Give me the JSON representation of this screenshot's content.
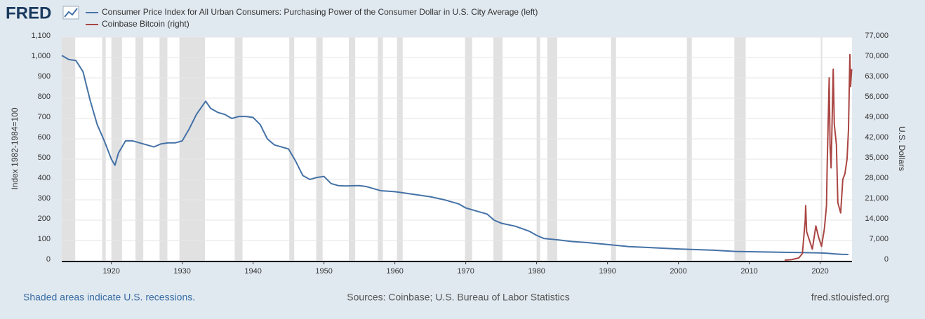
{
  "chart_data": {
    "type": "line",
    "logo": "FRED",
    "ylabel": "Index 1982-1984=100",
    "y2label": "U.S. Dollars",
    "footer_left": "Shaded areas indicate U.S. recessions.",
    "footer_center": "Sources: Coinbase; U.S. Bureau of Labor Statistics",
    "footer_right": "fred.stlouisfed.org",
    "xlim": [
      1913,
      2024.5
    ],
    "xticks": [
      1920,
      1930,
      1940,
      1950,
      1960,
      1970,
      1980,
      1990,
      2000,
      2010,
      2020
    ],
    "ylim": [
      0,
      1100
    ],
    "yticks": [
      0,
      100,
      200,
      300,
      400,
      500,
      600,
      700,
      800,
      900,
      {
        "value": 1000,
        "label": "1,000"
      },
      {
        "value": 1100,
        "label": "1,100"
      }
    ],
    "y2lim": [
      0,
      77000
    ],
    "y2ticks": [
      0,
      {
        "value": 7000,
        "label": "7,000"
      },
      {
        "value": 14000,
        "label": "14,000"
      },
      {
        "value": 21000,
        "label": "21,000"
      },
      {
        "value": 28000,
        "label": "28,000"
      },
      {
        "value": 35000,
        "label": "35,000"
      },
      {
        "value": 42000,
        "label": "42,000"
      },
      {
        "value": 49000,
        "label": "49,000"
      },
      {
        "value": 56000,
        "label": "56,000"
      },
      {
        "value": 63000,
        "label": "63,000"
      },
      {
        "value": 70000,
        "label": "70,000"
      },
      {
        "value": 77000,
        "label": "77,000"
      }
    ],
    "grid": true,
    "recession_color": "#e1e1e1",
    "recessions": [
      [
        1913.0,
        1914.9
      ],
      [
        1918.7,
        1919.2
      ],
      [
        1920.0,
        1921.5
      ],
      [
        1923.4,
        1924.5
      ],
      [
        1926.8,
        1927.9
      ],
      [
        1929.6,
        1933.2
      ],
      [
        1937.4,
        1938.5
      ],
      [
        1945.1,
        1945.8
      ],
      [
        1948.9,
        1949.8
      ],
      [
        1953.5,
        1954.4
      ],
      [
        1957.6,
        1958.3
      ],
      [
        1960.3,
        1961.1
      ],
      [
        1969.9,
        1970.9
      ],
      [
        1973.9,
        1975.2
      ],
      [
        1980.0,
        1980.5
      ],
      [
        1981.5,
        1982.9
      ],
      [
        1990.5,
        1991.2
      ],
      [
        2001.2,
        2001.9
      ],
      [
        2007.9,
        2009.5
      ],
      [
        2020.1,
        2020.3
      ]
    ],
    "series": [
      {
        "name": "Consumer Price Index for All Urban Consumers: Purchasing Power of the Consumer Dollar in U.S. City Average (left)",
        "color": "#4572a7",
        "axis": "y",
        "x": [
          1913,
          1914,
          1915,
          1916,
          1917,
          1918,
          1919,
          1920,
          1920.5,
          1921,
          1922,
          1923,
          1924,
          1925,
          1926,
          1927,
          1928,
          1929,
          1930,
          1931,
          1932,
          1933,
          1933.3,
          1934,
          1935,
          1936,
          1937,
          1938,
          1939,
          1940,
          1941,
          1942,
          1943,
          1944,
          1945,
          1946,
          1947,
          1948,
          1949,
          1950,
          1951,
          1952,
          1953,
          1955,
          1956,
          1957,
          1958,
          1960,
          1962,
          1965,
          1967,
          1969,
          1970,
          1972,
          1973,
          1974,
          1975,
          1977,
          1979,
          1980,
          1981,
          1983,
          1985,
          1987,
          1990,
          1993,
          1996,
          2000,
          2005,
          2008,
          2010,
          2015,
          2020,
          2021,
          2022,
          2023,
          2024
        ],
        "values": [
          1010,
          990,
          985,
          930,
          790,
          670,
          590,
          500,
          470,
          530,
          590,
          590,
          580,
          570,
          560,
          575,
          580,
          580,
          590,
          650,
          720,
          770,
          785,
          750,
          730,
          720,
          700,
          710,
          710,
          705,
          670,
          600,
          570,
          560,
          550,
          490,
          420,
          400,
          410,
          415,
          380,
          370,
          368,
          370,
          365,
          355,
          345,
          340,
          330,
          315,
          300,
          280,
          260,
          240,
          230,
          200,
          185,
          170,
          145,
          125,
          110,
          103,
          95,
          90,
          80,
          70,
          65,
          58,
          52,
          46,
          45,
          42,
          39,
          37,
          34,
          32,
          31
        ]
      },
      {
        "name": "Coinbase Bitcoin (right)",
        "color": "#aa4643",
        "axis": "y2",
        "x": [
          2015,
          2016,
          2017,
          2017.5,
          2017.9,
          2017.96,
          2018.1,
          2018.5,
          2018.9,
          2019.4,
          2019.8,
          2020.2,
          2020.6,
          2020.9,
          2021.0,
          2021.28,
          2021.4,
          2021.55,
          2021.85,
          2022.0,
          2022.3,
          2022.5,
          2022.9,
          2023.2,
          2023.5,
          2023.8,
          2024.0,
          2024.2,
          2024.3,
          2024.45
        ],
        "values": [
          250,
          430,
          1000,
          2500,
          14000,
          19000,
          10000,
          7000,
          4000,
          12000,
          8000,
          5000,
          11000,
          19000,
          33000,
          63000,
          40000,
          32000,
          66000,
          47000,
          40000,
          20000,
          16500,
          28000,
          30000,
          35000,
          45000,
          71000,
          60000,
          66000
        ]
      }
    ]
  }
}
